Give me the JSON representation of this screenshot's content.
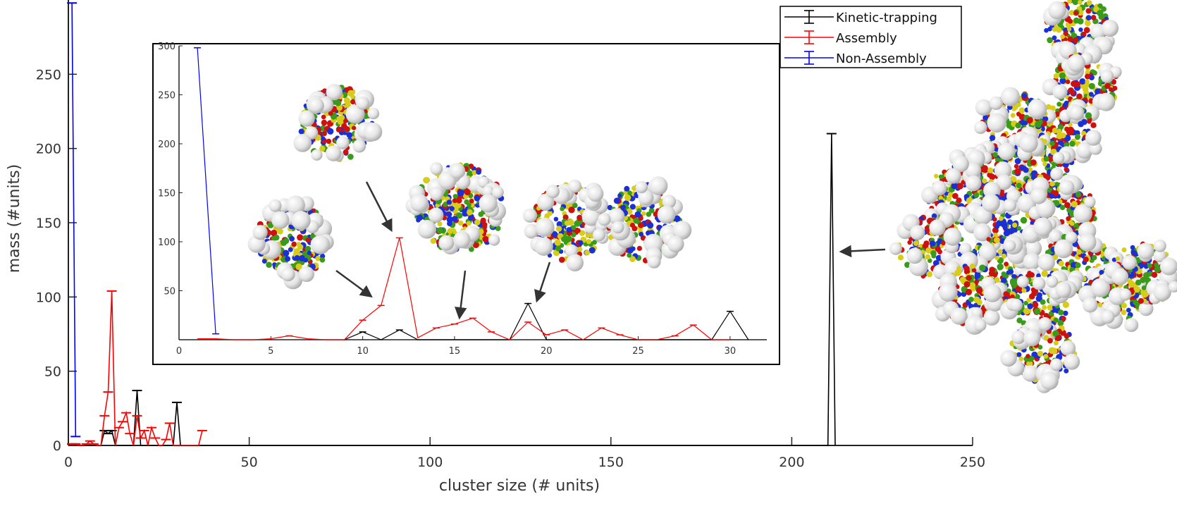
{
  "chart_data": [
    {
      "type": "line",
      "xlabel": "cluster size (# units)",
      "ylabel": "mass (#units)",
      "xlim": [
        0,
        250
      ],
      "ylim": [
        0,
        300
      ],
      "xticks": [
        "0",
        "50",
        "100",
        "150",
        "200",
        "250"
      ],
      "yticks": [
        "0",
        "50",
        "100",
        "150",
        "200",
        "250"
      ],
      "legend_position": "top-right",
      "series": [
        {
          "name": "Kinetic-trapping",
          "color": "#000000",
          "points": [
            [
              1,
              1
            ],
            [
              2,
              1
            ],
            [
              3,
              0
            ],
            [
              4,
              0
            ],
            [
              5,
              0
            ],
            [
              6,
              0
            ],
            [
              7,
              0
            ],
            [
              8,
              0
            ],
            [
              9,
              0
            ],
            [
              10,
              10
            ],
            [
              11,
              8
            ],
            [
              12,
              10
            ],
            [
              13,
              0
            ],
            [
              14,
              0
            ],
            [
              15,
              0
            ],
            [
              16,
              0
            ],
            [
              17,
              0
            ],
            [
              18,
              0
            ],
            [
              19,
              37
            ],
            [
              20,
              0
            ],
            [
              21,
              0
            ],
            [
              22,
              0
            ],
            [
              23,
              0
            ],
            [
              24,
              0
            ],
            [
              25,
              0
            ],
            [
              26,
              0
            ],
            [
              27,
              0
            ],
            [
              28,
              0
            ],
            [
              29,
              0
            ],
            [
              30,
              29
            ],
            [
              31,
              0
            ],
            [
              40,
              0
            ],
            [
              210,
              0
            ],
            [
              211,
              210
            ],
            [
              212,
              0
            ]
          ]
        },
        {
          "name": "Assembly",
          "color": "#ff0000",
          "points": [
            [
              1,
              1
            ],
            [
              2,
              1
            ],
            [
              3,
              0
            ],
            [
              4,
              0
            ],
            [
              5,
              1
            ],
            [
              6,
              3
            ],
            [
              7,
              1
            ],
            [
              8,
              0
            ],
            [
              9,
              0
            ],
            [
              10,
              20
            ],
            [
              11,
              36
            ],
            [
              12,
              104
            ],
            [
              13,
              0
            ],
            [
              14,
              12
            ],
            [
              15,
              16
            ],
            [
              16,
              22
            ],
            [
              17,
              8
            ],
            [
              18,
              0
            ],
            [
              19,
              20
            ],
            [
              20,
              5
            ],
            [
              21,
              10
            ],
            [
              22,
              0
            ],
            [
              23,
              12
            ],
            [
              24,
              5
            ],
            [
              25,
              0
            ],
            [
              26,
              0
            ],
            [
              27,
              4
            ],
            [
              28,
              15
            ],
            [
              29,
              0
            ],
            [
              30,
              0
            ],
            [
              31,
              0
            ],
            [
              32,
              0
            ],
            [
              33,
              0
            ],
            [
              34,
              0
            ],
            [
              35,
              0
            ],
            [
              36,
              0
            ],
            [
              37,
              10
            ]
          ]
        },
        {
          "name": "Non-Assembly",
          "color": "#0000ff",
          "points": [
            [
              1,
              298
            ],
            [
              2,
              6
            ]
          ]
        }
      ]
    },
    {
      "type": "line",
      "inset": true,
      "xlim": [
        0,
        32
      ],
      "ylim": [
        0,
        300
      ],
      "xticks": [
        "0",
        "5",
        "10",
        "15",
        "20",
        "25",
        "30"
      ],
      "yticks": [
        "50",
        "100",
        "150",
        "200",
        "250",
        "300"
      ],
      "series": [
        {
          "name": "Kinetic-trapping",
          "color": "#000000",
          "points": [
            [
              9,
              0
            ],
            [
              10,
              8
            ],
            [
              11,
              0
            ],
            [
              12,
              10
            ],
            [
              13,
              0
            ],
            [
              18,
              0
            ],
            [
              19,
              37
            ],
            [
              20,
              0
            ],
            [
              29,
              0
            ],
            [
              30,
              29
            ],
            [
              31,
              0
            ]
          ]
        },
        {
          "name": "Assembly",
          "color": "#ff0000",
          "points": [
            [
              1,
              1
            ],
            [
              2,
              1
            ],
            [
              3,
              0
            ],
            [
              4,
              0
            ],
            [
              5,
              1
            ],
            [
              6,
              4
            ],
            [
              7,
              1
            ],
            [
              8,
              0
            ],
            [
              9,
              0
            ],
            [
              10,
              20
            ],
            [
              11,
              35
            ],
            [
              12,
              104
            ],
            [
              13,
              2
            ],
            [
              14,
              12
            ],
            [
              15,
              16
            ],
            [
              16,
              22
            ],
            [
              17,
              8
            ],
            [
              18,
              0
            ],
            [
              19,
              18
            ],
            [
              20,
              5
            ],
            [
              21,
              10
            ],
            [
              22,
              0
            ],
            [
              23,
              12
            ],
            [
              24,
              5
            ],
            [
              25,
              0
            ],
            [
              26,
              0
            ],
            [
              27,
              4
            ],
            [
              28,
              15
            ],
            [
              29,
              0
            ],
            [
              30,
              0
            ]
          ]
        },
        {
          "name": "Non-Assembly",
          "color": "#0000ff",
          "points": [
            [
              1,
              298
            ],
            [
              2,
              6
            ]
          ]
        }
      ]
    }
  ],
  "legend": {
    "items": [
      {
        "label": "Kinetic-trapping",
        "color": "#000000"
      },
      {
        "label": "Assembly",
        "color": "#ff0000"
      },
      {
        "label": "Non-Assembly",
        "color": "#0000ff"
      }
    ]
  },
  "particle_colors": [
    "#cc1111",
    "#1a2fd6",
    "#3a9a1a",
    "#d8cc1a",
    "#f2f2f2"
  ]
}
